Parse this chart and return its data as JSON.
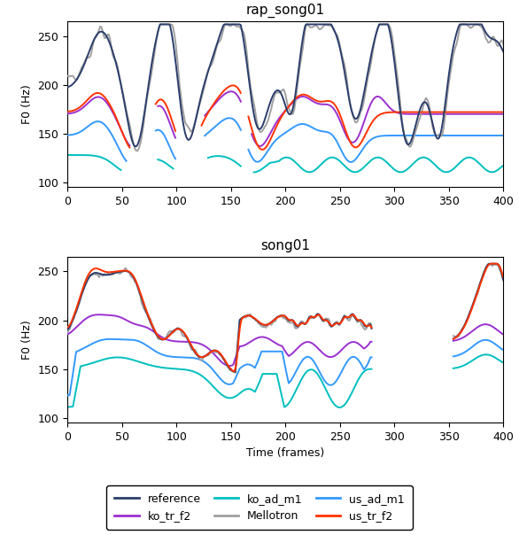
{
  "title1": "rap_song01",
  "title2": "song01",
  "xlabel": "Time (frames)",
  "ylabel": "F0 (Hz)",
  "xlim": [
    0,
    400
  ],
  "ylim": [
    95,
    265
  ],
  "yticks": [
    100,
    150,
    200,
    250
  ],
  "xticks": [
    0,
    50,
    100,
    150,
    200,
    250,
    300,
    350,
    400
  ],
  "colors": {
    "reference": "#2c3e6b",
    "Mellotron": "#a0a0a0",
    "ko_tr_f2": "#9b30d0",
    "us_ad_m1": "#3399ff",
    "ko_ad_m1": "#00bfbf",
    "us_tr_f2": "#ff3300"
  },
  "figsize": [
    5.86,
    6.04
  ],
  "dpi": 100
}
